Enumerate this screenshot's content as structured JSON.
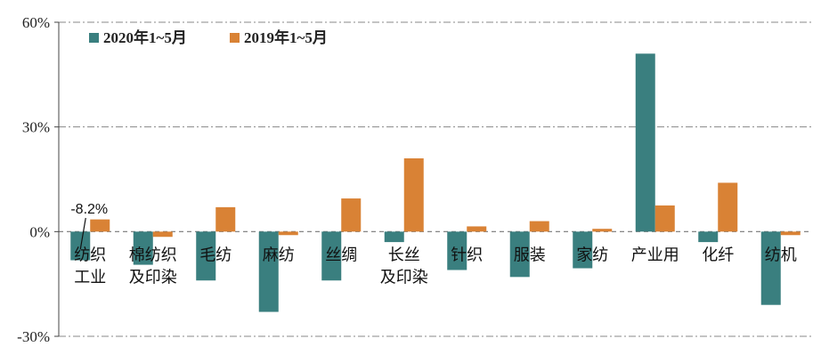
{
  "chart_data": {
    "type": "bar",
    "title": "",
    "xlabel": "",
    "ylabel": "",
    "ylim": [
      -30,
      60
    ],
    "yticks": [
      -30,
      0,
      30,
      60
    ],
    "ytick_labels": [
      "-30%",
      "0%",
      "30%",
      "60%"
    ],
    "grid": "horizontal dashed",
    "legend_position": "top-left",
    "categories": [
      [
        "纺织",
        "工业"
      ],
      [
        "棉纺织",
        "及印染"
      ],
      [
        "毛纺"
      ],
      [
        "麻纺"
      ],
      [
        "丝绸"
      ],
      [
        "长丝",
        "及印染"
      ],
      [
        "针织"
      ],
      [
        "服装"
      ],
      [
        "家纺"
      ],
      [
        "产业用"
      ],
      [
        "化纤"
      ],
      [
        "纺机"
      ]
    ],
    "series": [
      {
        "name": "2020年1~5月",
        "color": "#3a7f7f",
        "values": [
          -8.2,
          -9.5,
          -14,
          -23,
          -14,
          -3,
          -11,
          -13,
          -10.5,
          51,
          -3,
          -21
        ]
      },
      {
        "name": "2019年1~5月",
        "color": "#d98235",
        "values": [
          3.5,
          -1.5,
          7,
          -1,
          9.5,
          21,
          1.5,
          3,
          0.8,
          7.5,
          14,
          -1
        ]
      }
    ],
    "annotation": {
      "text": "-8.2%",
      "category_index": 0,
      "series_index": 0
    }
  }
}
